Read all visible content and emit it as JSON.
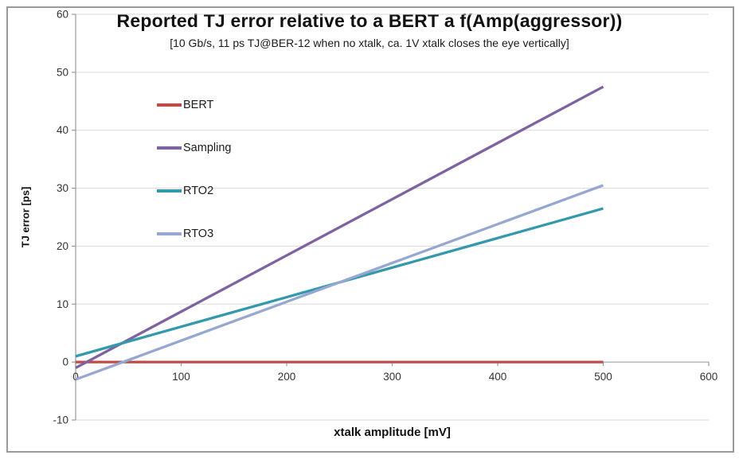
{
  "chart_data": {
    "type": "line",
    "title": "Reported TJ error relative to a BERT a f(Amp(aggressor))",
    "subtitle": "[10 Gb/s, 11 ps TJ@BER-12 when no xtalk, ca. 1V xtalk closes the eye vertically]",
    "xlabel": "xtalk amplitude [mV]",
    "ylabel": "TJ error [ps]",
    "xlim": [
      0,
      600
    ],
    "ylim": [
      -10,
      60
    ],
    "xticks": [
      0,
      100,
      200,
      300,
      400,
      500,
      600
    ],
    "yticks": [
      -10,
      0,
      10,
      20,
      30,
      40,
      50,
      60
    ],
    "grid": "horizontal",
    "legend_position": "inside-left",
    "x": [
      0,
      100,
      200,
      300,
      400,
      500
    ],
    "series": [
      {
        "name": "BERT",
        "color": "#BE4B48",
        "values": [
          0,
          0,
          0,
          0,
          0,
          0
        ]
      },
      {
        "name": "Sampling",
        "color": "#7E63A1",
        "values": [
          -1,
          8.7,
          18.4,
          28.1,
          37.8,
          47.5
        ]
      },
      {
        "name": "RTO2",
        "color": "#3499AC",
        "values": [
          1,
          6.1,
          11.2,
          16.3,
          21.4,
          26.5
        ]
      },
      {
        "name": "RTO3",
        "color": "#96A8D1",
        "values": [
          -3,
          3.7,
          10.4,
          17.1,
          23.8,
          30.5
        ]
      }
    ],
    "colors": {
      "gridline": "#D9D9D9",
      "axis": "#9A9A9A",
      "tick_label": "#333333"
    }
  }
}
